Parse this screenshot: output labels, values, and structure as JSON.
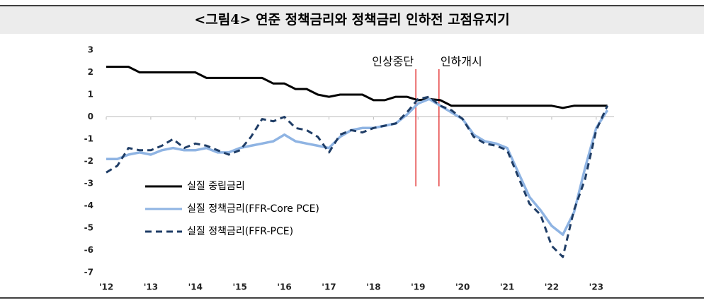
{
  "chart_data": {
    "type": "line",
    "title": "<그림4> 연준 정책금리와 정책금리 인하전 고점유지기",
    "x": [
      2012,
      2012.25,
      2012.5,
      2012.75,
      2013,
      2013.25,
      2013.5,
      2013.75,
      2014,
      2014.25,
      2014.5,
      2014.75,
      2015,
      2015.25,
      2015.5,
      2015.75,
      2016,
      2016.25,
      2016.5,
      2016.75,
      2017,
      2017.25,
      2017.5,
      2017.75,
      2018,
      2018.25,
      2018.5,
      2018.75,
      2019,
      2019.25,
      2019.5,
      2019.75,
      2020,
      2020.25,
      2020.5,
      2020.75,
      2021,
      2021.25,
      2021.5,
      2021.75,
      2022,
      2022.25,
      2022.5,
      2022.75,
      2023,
      2023.25
    ],
    "series": [
      {
        "name": "실질 중립금리",
        "color": "#000000",
        "dashed": false,
        "values": [
          2.25,
          2.25,
          2.25,
          2.0,
          2.0,
          2.0,
          2.0,
          2.0,
          2.0,
          1.75,
          1.75,
          1.75,
          1.75,
          1.75,
          1.75,
          1.5,
          1.5,
          1.25,
          1.25,
          1.0,
          0.9,
          1.0,
          1.0,
          1.0,
          0.75,
          0.75,
          0.9,
          0.9,
          0.75,
          0.8,
          0.75,
          0.5,
          0.5,
          0.5,
          0.5,
          0.5,
          0.5,
          0.5,
          0.5,
          0.5,
          0.5,
          0.4,
          0.5,
          0.5,
          0.5,
          0.5
        ]
      },
      {
        "name": "실질 정책금리(FFR-Core PCE)",
        "color": "#8fb4e3",
        "dashed": false,
        "values": [
          -1.9,
          -1.9,
          -1.7,
          -1.6,
          -1.7,
          -1.5,
          -1.4,
          -1.5,
          -1.5,
          -1.4,
          -1.6,
          -1.6,
          -1.4,
          -1.3,
          -1.2,
          -1.1,
          -0.8,
          -1.1,
          -1.2,
          -1.3,
          -1.4,
          -0.9,
          -0.6,
          -0.5,
          -0.5,
          -0.4,
          -0.3,
          0.1,
          0.6,
          0.8,
          0.5,
          0.2,
          -0.1,
          -0.8,
          -1.1,
          -1.2,
          -1.4,
          -2.5,
          -3.6,
          -4.2,
          -4.9,
          -5.3,
          -4.3,
          -2.3,
          -0.5,
          0.3
        ]
      },
      {
        "name": "실질 정책금리(FFR-PCE)",
        "color": "#1f3d66",
        "dashed": true,
        "values": [
          -2.5,
          -2.2,
          -1.4,
          -1.5,
          -1.5,
          -1.3,
          -1.0,
          -1.4,
          -1.2,
          -1.3,
          -1.5,
          -1.7,
          -1.5,
          -0.9,
          -0.1,
          -0.2,
          0.0,
          -0.5,
          -0.6,
          -0.9,
          -1.6,
          -0.8,
          -0.6,
          -0.7,
          -0.5,
          -0.4,
          -0.3,
          0.2,
          0.8,
          0.9,
          0.5,
          0.3,
          -0.1,
          -0.9,
          -1.2,
          -1.3,
          -1.5,
          -2.7,
          -3.9,
          -4.4,
          -5.8,
          -6.3,
          -4.2,
          -2.8,
          -0.6,
          0.5
        ]
      }
    ],
    "annotations": [
      {
        "text": "인상중단",
        "x": 2018.95
      },
      {
        "text": "인하개시",
        "x": 2019.47
      }
    ],
    "annotation_color": "#e02020",
    "xlim": [
      2012,
      2023.4
    ],
    "xticks": [
      {
        "value": 2012,
        "label": "'12"
      },
      {
        "value": 2013,
        "label": "'13"
      },
      {
        "value": 2014,
        "label": "'14"
      },
      {
        "value": 2015,
        "label": "'15"
      },
      {
        "value": 2016,
        "label": "'16"
      },
      {
        "value": 2017,
        "label": "'17"
      },
      {
        "value": 2018,
        "label": "'18"
      },
      {
        "value": 2019,
        "label": "'19"
      },
      {
        "value": 2020,
        "label": "'20"
      },
      {
        "value": 2021,
        "label": "'21"
      },
      {
        "value": 2022,
        "label": "'22"
      },
      {
        "value": 2023,
        "label": "'23"
      }
    ],
    "ylim": [
      -7,
      3
    ],
    "yticks": [
      -7,
      -6,
      -5,
      -4,
      -3,
      -2,
      -1,
      0,
      1,
      2,
      3
    ],
    "grid": false,
    "legend": "lower left"
  }
}
